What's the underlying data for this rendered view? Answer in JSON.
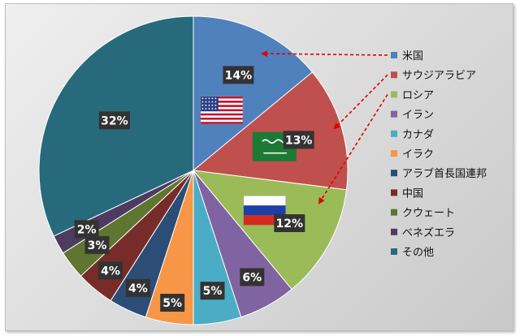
{
  "chart_data": {
    "type": "pie",
    "title": "",
    "legend_position": "right",
    "series": [
      {
        "name": "米国",
        "value": 14,
        "label": "14%",
        "color": "#4f81bd",
        "flag": "us-flag"
      },
      {
        "name": "サウジアラビア",
        "value": 13,
        "label": "13%",
        "color": "#c0504d",
        "flag": "saudi-flag"
      },
      {
        "name": "ロシア",
        "value": 12,
        "label": "12%",
        "color": "#9bbb59",
        "flag": "russia-flag"
      },
      {
        "name": "イラン",
        "value": 6,
        "label": "6%",
        "color": "#8064a2"
      },
      {
        "name": "カナダ",
        "value": 5,
        "label": "5%",
        "color": "#4bacc6"
      },
      {
        "name": "イラク",
        "value": 5,
        "label": "5%",
        "color": "#f79646"
      },
      {
        "name": "アラブ首長国連邦",
        "value": 4,
        "label": "4%",
        "color": "#2c4d75"
      },
      {
        "name": "中国",
        "value": 4,
        "label": "4%",
        "color": "#772c2a"
      },
      {
        "name": "クウェート",
        "value": 3,
        "label": "3%",
        "color": "#5f7530"
      },
      {
        "name": "ベネズエラ",
        "value": 2,
        "label": "2%",
        "color": "#4d3b62"
      },
      {
        "name": "その他",
        "value": 32,
        "label": "32%",
        "color": "#276a7c"
      }
    ],
    "annotations": [
      {
        "type": "dashed-arrow",
        "color": "#e00000",
        "from_legend": "米国",
        "to_slice": "米国"
      },
      {
        "type": "dashed-arrow",
        "color": "#e00000",
        "from_legend": "サウジアラビア",
        "to_slice": "サウジアラビア"
      },
      {
        "type": "dashed-arrow",
        "color": "#e00000",
        "from_legend": "ロシア",
        "to_slice": "ロシア"
      }
    ]
  }
}
